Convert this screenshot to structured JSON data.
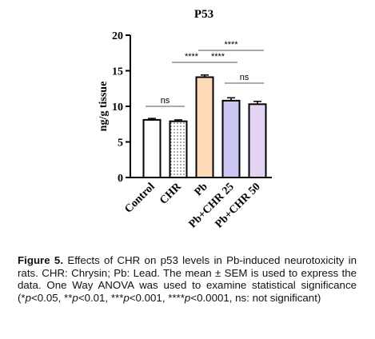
{
  "chart_data": {
    "type": "bar",
    "title": "P53",
    "y_label": "ng/g tissue",
    "categories": [
      "Control",
      "CHR",
      "Pb",
      "Pb+CHR 25",
      "Pb+CHR 50"
    ],
    "values": [
      8.1,
      7.9,
      14.1,
      10.8,
      10.3
    ],
    "errors": [
      0.2,
      0.2,
      0.3,
      0.4,
      0.4
    ],
    "colors": [
      "#ffffff",
      "#ffffff",
      "#fdd9b8",
      "#c9c7f2",
      "#e4d3f3"
    ],
    "patterns": [
      null,
      "dots",
      null,
      null,
      null
    ],
    "ylim": [
      0,
      20
    ],
    "yticks": [
      0,
      5,
      10,
      15,
      20
    ],
    "comparisons": [
      {
        "groups": [
          "Control",
          "CHR"
        ],
        "label": "ns"
      },
      {
        "groups": [
          "CHR",
          "Pb"
        ],
        "label": "****"
      },
      {
        "groups": [
          "Pb",
          "Pb+CHR 25"
        ],
        "label": "****"
      },
      {
        "groups": [
          "Pb",
          "Pb+CHR 50"
        ],
        "label": "****"
      },
      {
        "groups": [
          "Pb+CHR 25",
          "Pb+CHR 50"
        ],
        "label": "ns"
      }
    ]
  },
  "caption": {
    "label": "Figure 5.",
    "segments": [
      " Effects of CHR on p53 levels in Pb-induced neurotoxicity in rats. CHR: Chrysin; Pb: Lead. The mean ± SEM is used to express the data. One Way ANOVA was used to examine statistical significance (*",
      "p",
      "<0.05, **",
      "p",
      "<0.01, ***",
      "p",
      "<0.001, ****",
      "p",
      "<0.0001, ns: not significant)"
    ]
  }
}
